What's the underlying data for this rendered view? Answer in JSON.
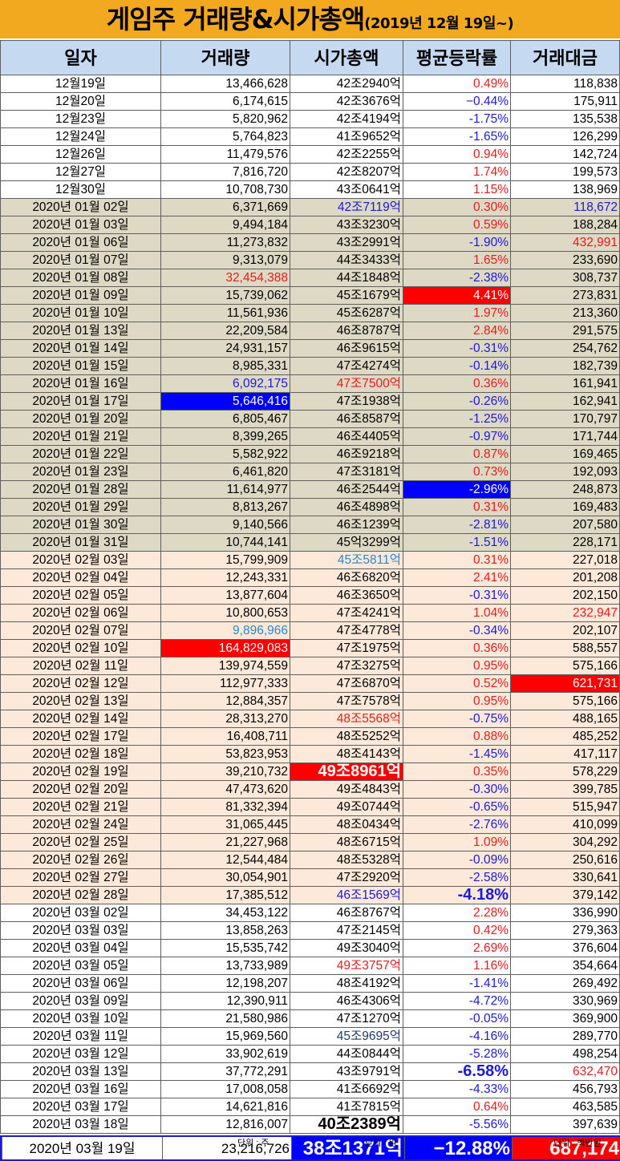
{
  "title": {
    "main": "게임주 거래량&시가총액",
    "sub": "(2019년 12월 19일~)"
  },
  "columns": [
    "일자",
    "거래량",
    "시가총액",
    "평균등락률",
    "거래대금"
  ],
  "colors": {
    "title_bg": "#f2a81f",
    "header_bg": "#c5d9f1",
    "december_bg": "#ffffff",
    "january_bg": "#ddd9c4",
    "february_bg": "#fde9d9",
    "march_bg": "#ffffff",
    "highlight_red": "#ff0000",
    "highlight_blue": "#0000ff",
    "text_red": "#e81c1c",
    "text_blue": "#1a1adb"
  },
  "rows": [
    {
      "date": "12월19일",
      "volume": "13,466,628",
      "cap": "42조2940억",
      "change": "0.49%",
      "amount": "118,838",
      "change_sign": "up"
    },
    {
      "date": "12월20일",
      "volume": "6,174,615",
      "cap": "42조3676억",
      "change": "−0.44%",
      "amount": "175,911",
      "change_sign": "down"
    },
    {
      "date": "12월23일",
      "volume": "5,820,962",
      "cap": "42조4194억",
      "change": "-1.75%",
      "amount": "135,538",
      "change_sign": "down"
    },
    {
      "date": "12월24일",
      "volume": "5,764,823",
      "cap": "41조9652억",
      "change": "-1.65%",
      "amount": "126,299",
      "change_sign": "down"
    },
    {
      "date": "12월26일",
      "volume": "11,479,576",
      "cap": "42조2255억",
      "change": "0.94%",
      "amount": "142,724",
      "change_sign": "up"
    },
    {
      "date": "12월27일",
      "volume": "7,816,720",
      "cap": "42조8207억",
      "change": "1.74%",
      "amount": "199,573",
      "change_sign": "up"
    },
    {
      "date": "12월30일",
      "volume": "10,708,730",
      "cap": "43조0641억",
      "change": "1.15%",
      "amount": "138,969",
      "change_sign": "up"
    },
    {
      "date": "2020년 01월 02일",
      "volume": "6,371,669",
      "cap": "42조7119억",
      "change": "0.30%",
      "amount": "118,672",
      "change_sign": "up",
      "cap_style": "blue",
      "amount_style": "blue"
    },
    {
      "date": "2020년 01월 03일",
      "volume": "9,494,184",
      "cap": "43조3230억",
      "change": "0.59%",
      "amount": "188,284",
      "change_sign": "up"
    },
    {
      "date": "2020년 01월 06일",
      "volume": "11,273,832",
      "cap": "43조2991억",
      "change": "-1.90%",
      "amount": "432,991",
      "change_sign": "down",
      "amount_style": "red"
    },
    {
      "date": "2020년 01월 07일",
      "volume": "9,313,079",
      "cap": "44조3433억",
      "change": "1.65%",
      "amount": "233,690",
      "change_sign": "up"
    },
    {
      "date": "2020년 01월 08일",
      "volume": "32,454,388",
      "cap": "44조1848억",
      "change": "-2.38%",
      "amount": "308,737",
      "change_sign": "down",
      "volume_style": "red"
    },
    {
      "date": "2020년 01월 09일",
      "volume": "15,739,062",
      "cap": "45조1679억",
      "change": "4.41%",
      "amount": "273,831",
      "change_sign": "up",
      "change_style": "bg-red"
    },
    {
      "date": "2020년 01월 10일",
      "volume": "11,561,936",
      "cap": "45조6287억",
      "change": "1.97%",
      "amount": "213,360",
      "change_sign": "up"
    },
    {
      "date": "2020년 01월 13일",
      "volume": "22,209,584",
      "cap": "46조8787억",
      "change": "2.84%",
      "amount": "291,575",
      "change_sign": "up"
    },
    {
      "date": "2020년 01월 14일",
      "volume": "24,931,157",
      "cap": "46조9615억",
      "change": "-0.31%",
      "amount": "254,762",
      "change_sign": "down"
    },
    {
      "date": "2020년 01월 15일",
      "volume": "8,985,331",
      "cap": "47조4274억",
      "change": "-0.14%",
      "amount": "182,739",
      "change_sign": "down"
    },
    {
      "date": "2020년 01월 16일",
      "volume": "6,092,175",
      "cap": "47조7500억",
      "change": "0.36%",
      "amount": "161,941",
      "change_sign": "up",
      "volume_style": "blue",
      "cap_style": "red"
    },
    {
      "date": "2020년 01월 17일",
      "volume": "5,646,416",
      "cap": "47조1938억",
      "change": "-0.26%",
      "amount": "162,941",
      "change_sign": "down",
      "volume_style": "bg-blue"
    },
    {
      "date": "2020년 01월 20일",
      "volume": "6,805,467",
      "cap": "46조8587억",
      "change": "-1.25%",
      "amount": "170,797",
      "change_sign": "down"
    },
    {
      "date": "2020년 01월 21일",
      "volume": "8,399,265",
      "cap": "46조4405억",
      "change": "-0.97%",
      "amount": "171,744",
      "change_sign": "down"
    },
    {
      "date": "2020년 01월 22일",
      "volume": "5,582,922",
      "cap": "46조9218억",
      "change": "0.87%",
      "amount": "169,465",
      "change_sign": "up"
    },
    {
      "date": "2020년 01월 23일",
      "volume": "6,461,820",
      "cap": "47조3181억",
      "change": "0.73%",
      "amount": "192,093",
      "change_sign": "up"
    },
    {
      "date": "2020년 01월 28일",
      "volume": "11,614,977",
      "cap": "46조2544억",
      "change": "-2.96%",
      "amount": "248,873",
      "change_sign": "down",
      "change_style": "bg-blue"
    },
    {
      "date": "2020년 01월 29일",
      "volume": "8,813,267",
      "cap": "46조4898억",
      "change": "0.31%",
      "amount": "169,483",
      "change_sign": "up"
    },
    {
      "date": "2020년 01월 30일",
      "volume": "9,140,566",
      "cap": "46조1239억",
      "change": "-2.81%",
      "amount": "207,580",
      "change_sign": "down"
    },
    {
      "date": "2020년 01월 31일",
      "volume": "10,744,141",
      "cap": "45억3299억",
      "change": "-1.51%",
      "amount": "228,171",
      "change_sign": "down"
    },
    {
      "date": "2020년 02월 03일",
      "volume": "15,799,909",
      "cap": "45조5811억",
      "change": "0.31%",
      "amount": "227,018",
      "change_sign": "up",
      "cap_style": "lblue"
    },
    {
      "date": "2020년 02월 04일",
      "volume": "12,243,331",
      "cap": "46조6820억",
      "change": "2.41%",
      "amount": "201,208",
      "change_sign": "up"
    },
    {
      "date": "2020년 02월 05일",
      "volume": "13,877,604",
      "cap": "46조3650억",
      "change": "-0.31%",
      "amount": "202,150",
      "change_sign": "down"
    },
    {
      "date": "2020년 02월 06일",
      "volume": "10,800,653",
      "cap": "47조4241억",
      "change": "1.04%",
      "amount": "232,947",
      "change_sign": "up",
      "amount_style": "red"
    },
    {
      "date": "2020년 02월 07일",
      "volume": "9,896,966",
      "cap": "47조4778억",
      "change": "-0.34%",
      "amount": "202,107",
      "change_sign": "down",
      "volume_style": "lblue"
    },
    {
      "date": "2020년 02월 10일",
      "volume": "164,829,083",
      "cap": "47조1975억",
      "change": "0.36%",
      "amount": "588,557",
      "change_sign": "up",
      "volume_style": "bg-red"
    },
    {
      "date": "2020년 02월 11일",
      "volume": "139,974,559",
      "cap": "47조3275억",
      "change": "0.95%",
      "amount": "575,166",
      "change_sign": "up"
    },
    {
      "date": "2020년 02월 12일",
      "volume": "112,977,333",
      "cap": "47조6870억",
      "change": "0.52%",
      "amount": "621,731",
      "change_sign": "up",
      "amount_style": "bg-red"
    },
    {
      "date": "2020년 02월 13일",
      "volume": "12,884,357",
      "cap": "47조7578억",
      "change": "0.95%",
      "amount": "575,166",
      "change_sign": "up"
    },
    {
      "date": "2020년 02월 14일",
      "volume": "28,313,270",
      "cap": "48조5568억",
      "change": "-0.75%",
      "amount": "488,165",
      "change_sign": "down",
      "cap_style": "red"
    },
    {
      "date": "2020년 02월 17일",
      "volume": "16,408,711",
      "cap": "48조5252억",
      "change": "0.88%",
      "amount": "485,252",
      "change_sign": "up"
    },
    {
      "date": "2020년 02월 18일",
      "volume": "53,823,953",
      "cap": "48조4143억",
      "change": "-1.45%",
      "amount": "417,117",
      "change_sign": "down"
    },
    {
      "date": "2020년 02월 19일",
      "volume": "39,210,732",
      "cap": "49조8961억",
      "change": "0.35%",
      "amount": "578,229",
      "change_sign": "up",
      "cap_style": "bg-red big"
    },
    {
      "date": "2020년 02월 20일",
      "volume": "47,473,620",
      "cap": "49조4843억",
      "change": "-0.30%",
      "amount": "399,785",
      "change_sign": "down"
    },
    {
      "date": "2020년 02월 21일",
      "volume": "81,332,394",
      "cap": "49조0744억",
      "change": "-0.65%",
      "amount": "515,947",
      "change_sign": "down"
    },
    {
      "date": "2020년 02월 24일",
      "volume": "31,065,445",
      "cap": "48조0434억",
      "change": "-2.76%",
      "amount": "410,099",
      "change_sign": "down"
    },
    {
      "date": "2020년 02월 25일",
      "volume": "21,227,968",
      "cap": "48조6715억",
      "change": "1.09%",
      "amount": "304,292",
      "change_sign": "up"
    },
    {
      "date": "2020년 02월 26일",
      "volume": "12,544,484",
      "cap": "48조5328억",
      "change": "-0.09%",
      "amount": "250,616",
      "change_sign": "down"
    },
    {
      "date": "2020년 02월 27일",
      "volume": "30,054,901",
      "cap": "47조2920억",
      "change": "-2.58%",
      "amount": "330,641",
      "change_sign": "down"
    },
    {
      "date": "2020년 02월 28일",
      "volume": "17,385,512",
      "cap": "46조1569억",
      "change": "-4.18%",
      "amount": "379,142",
      "change_sign": "down",
      "cap_style": "blue",
      "change_style": "blue big"
    },
    {
      "date": "2020년 03월 02일",
      "volume": "34,453,122",
      "cap": "46조8767억",
      "change": "2.28%",
      "amount": "336,990",
      "change_sign": "up"
    },
    {
      "date": "2020년 03월 03일",
      "volume": "13,858,263",
      "cap": "47조2145억",
      "change": "0.42%",
      "amount": "279,363",
      "change_sign": "up"
    },
    {
      "date": "2020년 03월 04일",
      "volume": "15,535,742",
      "cap": "49조3040억",
      "change": "2.69%",
      "amount": "376,604",
      "change_sign": "up"
    },
    {
      "date": "2020년 03월 05일",
      "volume": "13,733,989",
      "cap": "49조3757억",
      "change": "1.16%",
      "amount": "354,664",
      "change_sign": "up",
      "cap_style": "red"
    },
    {
      "date": "2020년 03월 06일",
      "volume": "12,198,207",
      "cap": "48조4192억",
      "change": "-1.41%",
      "amount": "269,492",
      "change_sign": "down"
    },
    {
      "date": "2020년 03월 09일",
      "volume": "12,390,911",
      "cap": "46조4306억",
      "change": "-4.72%",
      "amount": "330,969",
      "change_sign": "down"
    },
    {
      "date": "2020년 03월 10일",
      "volume": "21,580,986",
      "cap": "47조1270억",
      "change": "-0.05%",
      "amount": "369,900",
      "change_sign": "down"
    },
    {
      "date": "2020년 03월 11일",
      "volume": "15,969,560",
      "cap": "45조9695억",
      "change": "-4.16%",
      "amount": "289,770",
      "change_sign": "down",
      "cap_style": "navy"
    },
    {
      "date": "2020년 03월 12일",
      "volume": "33,902,619",
      "cap": "44조0844억",
      "change": "-5.28%",
      "amount": "498,254",
      "change_sign": "down"
    },
    {
      "date": "2020년 03월 13일",
      "volume": "37,772,291",
      "cap": "43조9791억",
      "change": "-6.58%",
      "amount": "632,470",
      "change_sign": "down",
      "change_style": "blue big",
      "amount_style": "red"
    },
    {
      "date": "2020년 03월 16일",
      "volume": "17,008,058",
      "cap": "41조6692억",
      "change": "-4.33%",
      "amount": "456,793",
      "change_sign": "down"
    },
    {
      "date": "2020년 03월 17일",
      "volume": "14,621,816",
      "cap": "41조7815억",
      "change": "0.64%",
      "amount": "463,585",
      "change_sign": "up"
    },
    {
      "date": "2020년 03월 18일",
      "volume": "12,816,007",
      "cap": "40조2389억",
      "change": "-5.56%",
      "amount": "397,639",
      "change_sign": "down",
      "cap_style": "big"
    },
    {
      "date": "2020년 03월 19일",
      "volume": "23,216,726",
      "cap": "38조1371억",
      "change": "−12.88%",
      "amount": "687,174",
      "change_sign": "down",
      "cap_style": "bg-blue big",
      "change_style": "bg-blue big",
      "amount_style": "bg-red big"
    }
  ],
  "footer": {
    "unit_volume": "단위 : 주",
    "unit_cap": "단위 : 원",
    "unit_amount": "단위 : 백만원"
  }
}
